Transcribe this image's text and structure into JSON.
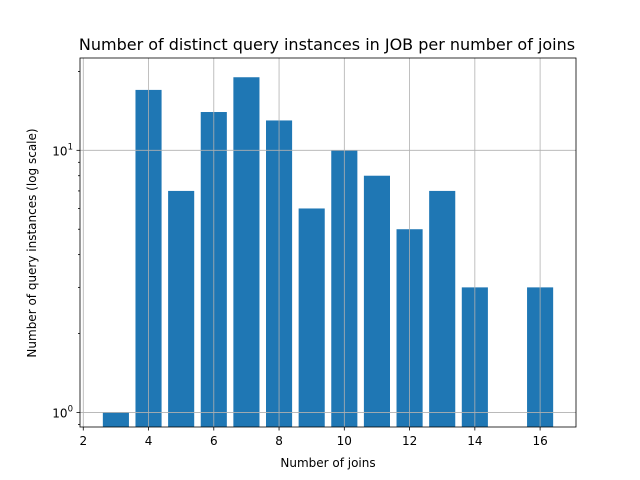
{
  "chart_data": {
    "type": "bar",
    "title": "Number of distinct query instances in JOB per number of joins",
    "xlabel": "Number of joins",
    "ylabel": "Number of query instances (log scale)",
    "yscale": "log",
    "grid": true,
    "bar_color": "#1f77b4",
    "x": [
      3,
      4,
      5,
      6,
      7,
      8,
      9,
      10,
      11,
      12,
      13,
      14,
      16
    ],
    "values": [
      1,
      17,
      7,
      14,
      19,
      13,
      6,
      10,
      8,
      5,
      7,
      3,
      3
    ],
    "xlim": [
      1.9,
      17.1
    ],
    "ylim": [
      0.88,
      22.5
    ],
    "xticks": [
      2,
      4,
      6,
      8,
      10,
      12,
      14,
      16
    ],
    "yticks": [
      {
        "value": 1,
        "base": "10",
        "exp": "0"
      },
      {
        "value": 10,
        "base": "10",
        "exp": "1"
      }
    ]
  }
}
